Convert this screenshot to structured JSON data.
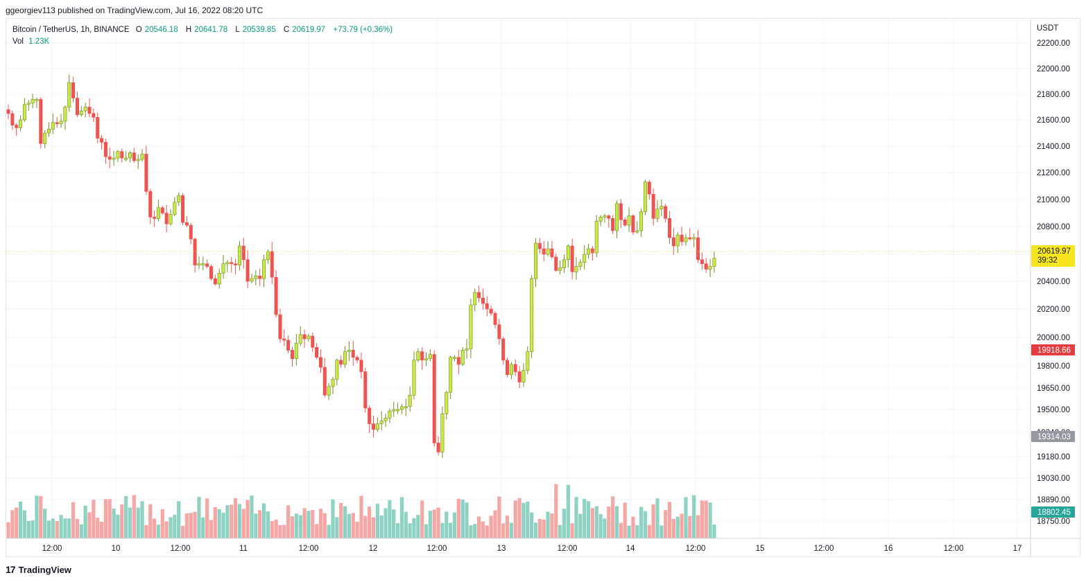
{
  "publisher": "ggeorgiev113 published on TradingView.com, Jul 16, 2022 08:20 UTC",
  "legend": {
    "symbol": "Bitcoin / TetherUS, 1h, BINANCE",
    "open": "20546.18",
    "high": "20641.78",
    "low": "20539.85",
    "close": "20619.97",
    "change": "+73.79 (+0.36%)",
    "vol_label": "Vol",
    "vol_value": "1.23K"
  },
  "footer": {
    "logo": "17",
    "brand": "TradingView"
  },
  "colors": {
    "up": "#c8e84a",
    "up_border": "#6f8f1a",
    "down": "#ef5350",
    "vol_up": "#8ed2c4",
    "vol_down": "#f5a7a5",
    "price_tag": "#f7e51f",
    "tag_red": "#e53c3f",
    "tag_gray": "#9598a1",
    "tag_teal": "#26a69a"
  },
  "chart_data": {
    "type": "candlestick",
    "unit": "USDT",
    "y_ticks": [
      "22200.00",
      "22000.00",
      "21800.00",
      "21600.00",
      "21400.00",
      "21200.00",
      "21000.00",
      "20800.00",
      "20600.00",
      "20400.00",
      "20200.00",
      "20000.00",
      "19800.00",
      "19650.00",
      "19500.00",
      "19340.00",
      "19180.00",
      "19030.00",
      "18890.00",
      "18750.00"
    ],
    "x_ticks": [
      "12:00",
      "10",
      "12:00",
      "11",
      "12:00",
      "12",
      "12:00",
      "13",
      "12:00",
      "14",
      "12:00",
      "15",
      "12:00",
      "16",
      "12:00",
      "17"
    ],
    "price_tags": {
      "last": "20619.97",
      "countdown": "39:32",
      "red": "19918.66",
      "gray": "19314.03",
      "teal": "18802.45"
    },
    "candles_close": [
      21650,
      21560,
      21540,
      21600,
      21720,
      21730,
      21760,
      21760,
      21420,
      21500,
      21530,
      21580,
      21570,
      21590,
      21700,
      21890,
      21770,
      21640,
      21670,
      21700,
      21650,
      21620,
      21460,
      21430,
      21320,
      21300,
      21310,
      21360,
      21310,
      21310,
      21350,
      21290,
      21300,
      21340,
      21060,
      20870,
      20860,
      20940,
      20900,
      20820,
      20890,
      20980,
      21030,
      20830,
      20810,
      20710,
      20520,
      20530,
      20530,
      20510,
      20420,
      20380,
      20460,
      20530,
      20540,
      20530,
      20520,
      20660,
      20560,
      20400,
      20420,
      20440,
      20420,
      20560,
      20620,
      20430,
      20160,
      19990,
      19980,
      19910,
      19850,
      19960,
      20020,
      19990,
      20010,
      19930,
      19860,
      19790,
      19600,
      19660,
      19710,
      19840,
      19810,
      19900,
      19910,
      19860,
      19840,
      19760,
      19510,
      19400,
      19360,
      19400,
      19420,
      19440,
      19490,
      19500,
      19500,
      19520,
      19520,
      19600,
      19840,
      19900,
      19840,
      19850,
      19880,
      19270,
      19210,
      19470,
      19620,
      19860,
      19860,
      19810,
      19910,
      19920,
      20230,
      20320,
      20280,
      20240,
      20200,
      20170,
      20090,
      19990,
      19840,
      19740,
      19810,
      19760,
      19690,
      19770,
      19900,
      20420,
      20680,
      20640,
      20600,
      20640,
      20580,
      20480,
      20500,
      20560,
      20660,
      20470,
      20510,
      20540,
      20600,
      20640,
      20610,
      20840,
      20870,
      20880,
      20860,
      20770,
      20970,
      20850,
      20810,
      20880,
      20760,
      20770,
      20910,
      21130,
      21040,
      20860,
      20930,
      20950,
      20860,
      20720,
      20660,
      20740,
      20690,
      20720,
      20710,
      20720,
      20560,
      20530,
      20490,
      20510,
      20570
    ],
    "volume_up": true
  }
}
